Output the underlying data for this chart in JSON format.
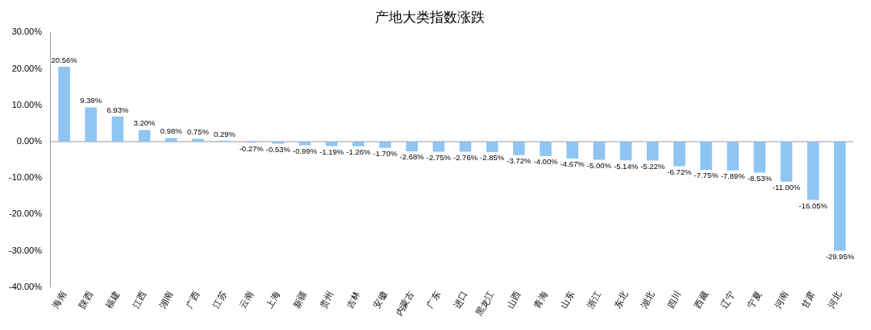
{
  "chart_data": {
    "type": "bar",
    "title": "产地大类指数涨跌",
    "categories": [
      "海南",
      "陕西",
      "福建",
      "江西",
      "湖南",
      "广西",
      "江苏",
      "云南",
      "上海",
      "新疆",
      "贵州",
      "吉林",
      "安徽",
      "内蒙古",
      "广东",
      "进口",
      "黑龙江",
      "山西",
      "青海",
      "山东",
      "浙江",
      "东北",
      "湖北",
      "四川",
      "西藏",
      "辽宁",
      "宁夏",
      "河南",
      "甘肃",
      "河北"
    ],
    "values": [
      20.56,
      9.38,
      6.93,
      3.2,
      0.98,
      0.75,
      0.29,
      -0.27,
      -0.53,
      -0.99,
      -1.19,
      -1.26,
      -1.7,
      -2.68,
      -2.75,
      -2.76,
      -2.85,
      -3.72,
      -4.0,
      -4.67,
      -5.0,
      -5.14,
      -5.22,
      -6.72,
      -7.75,
      -7.89,
      -8.53,
      -11.0,
      -16.05,
      -29.95
    ],
    "value_labels": [
      "20.56%",
      "9.38%",
      "6.93%",
      "3.20%",
      "0.98%",
      "0.75%",
      "0.29%",
      "-0.27%",
      "-0.53%",
      "-0.99%",
      "-1.19%",
      "-1.26%",
      "-1.70%",
      "-2.68%",
      "-2.75%",
      "-2.76%",
      "-2.85%",
      "-3.72%",
      "-4.00%",
      "-4.67%",
      "-5.00%",
      "-5.14%",
      "-5.22%",
      "-6.72%",
      "-7.75%",
      "-7.89%",
      "-8.53%",
      "-11.00%",
      "-16.05%",
      "-29.95%"
    ],
    "color": "#8ec5f3",
    "ylim": [
      -40,
      30
    ],
    "yticks": [
      {
        "value": -40,
        "label": "-40.00%"
      },
      {
        "value": -30,
        "label": "-30.00%"
      },
      {
        "value": -20,
        "label": "-20.00%"
      },
      {
        "value": -10,
        "label": "-10.00%"
      },
      {
        "value": 0,
        "label": "0.00%"
      },
      {
        "value": 10,
        "label": "10.00%"
      },
      {
        "value": 20,
        "label": "20.00%"
      },
      {
        "value": 30,
        "label": "30.00%"
      }
    ],
    "ref_lines": [
      {
        "axis": "y",
        "value": 0,
        "color": "#999999"
      }
    ],
    "grid": false,
    "legend": false
  }
}
